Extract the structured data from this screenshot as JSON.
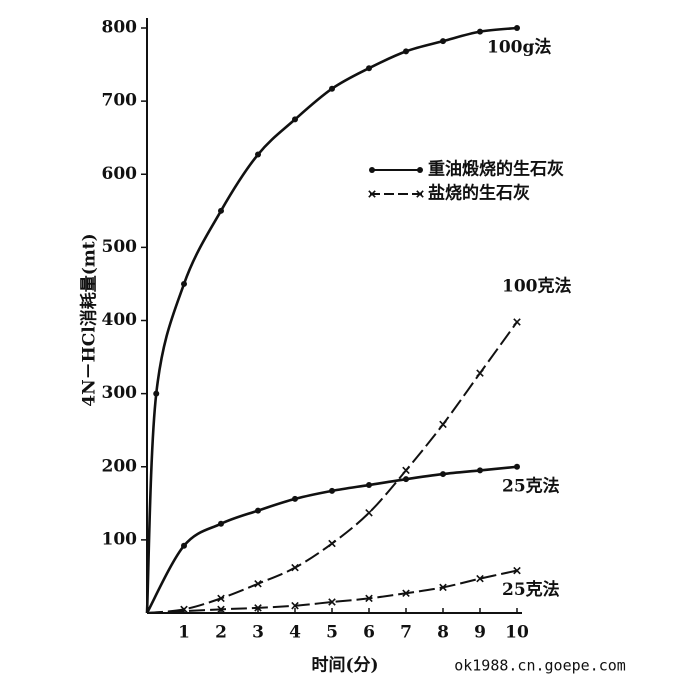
{
  "chart_data": {
    "type": "line",
    "ylabel": "4N－HCl消耗量(mt)",
    "xlabel": "时间(分)",
    "watermark": "ok1988.cn.goepe.com",
    "xlim": [
      0,
      10
    ],
    "xticks": [
      1,
      2,
      3,
      4,
      5,
      6,
      7,
      8,
      9,
      10
    ],
    "ylim": [
      0,
      800
    ],
    "yticks": [
      100,
      200,
      300,
      400,
      500,
      600,
      700,
      800
    ],
    "legend": [
      {
        "label": "重油煅烧的生石灰",
        "marker": "dot"
      },
      {
        "label": "盐烧的生石灰",
        "marker": "cross"
      }
    ],
    "series": [
      {
        "name": "100g法",
        "color": "#111111",
        "marker": "dot",
        "dashed": false,
        "x": [
          0,
          0.25,
          1,
          2,
          3,
          4,
          5,
          6,
          7,
          8,
          9,
          10
        ],
        "values": [
          0,
          300,
          450,
          550,
          627,
          675,
          717,
          745,
          768,
          782,
          795,
          800
        ]
      },
      {
        "name": "25克法",
        "color": "#111111",
        "marker": "dot",
        "dashed": false,
        "x": [
          0,
          1,
          2,
          3,
          4,
          5,
          6,
          7,
          8,
          9,
          10
        ],
        "values": [
          0,
          92,
          122,
          140,
          156,
          167,
          175,
          183,
          190,
          195,
          200
        ]
      },
      {
        "name": "100克法",
        "color": "#111111",
        "marker": "cross",
        "dashed": true,
        "x": [
          0,
          1,
          2,
          3,
          4,
          5,
          6,
          7,
          8,
          9,
          10
        ],
        "values": [
          0,
          5,
          20,
          40,
          62,
          95,
          137,
          195,
          258,
          328,
          398
        ]
      },
      {
        "name": "25克法",
        "color": "#111111",
        "marker": "cross",
        "dashed": true,
        "x": [
          0,
          2,
          3,
          4,
          5,
          6,
          7,
          8,
          9,
          10
        ],
        "values": [
          0,
          5,
          7,
          10,
          15,
          20,
          27,
          35,
          47,
          58
        ]
      }
    ]
  }
}
